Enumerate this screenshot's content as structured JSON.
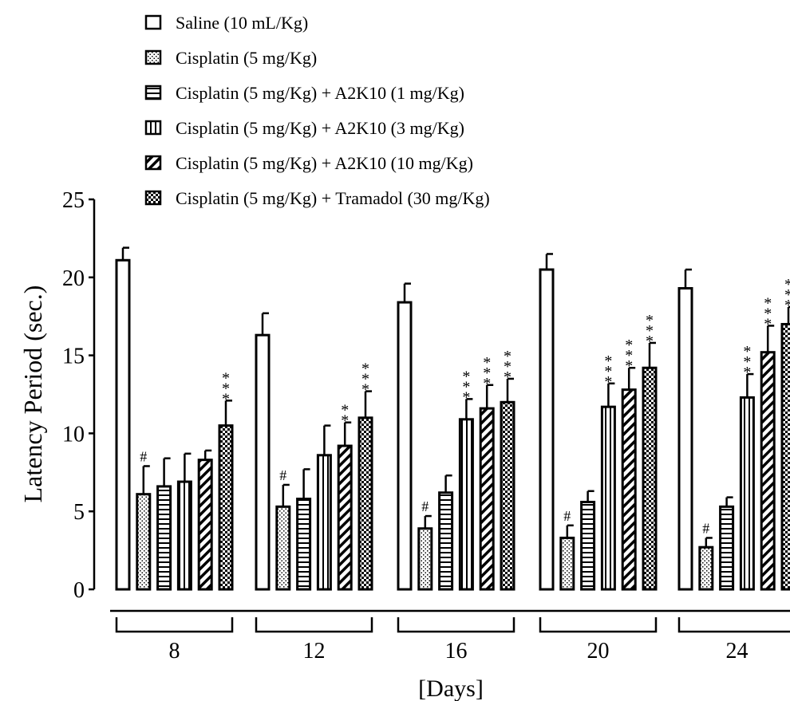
{
  "chart_data": {
    "type": "bar",
    "xlabel": "[Days]",
    "ylabel": "Latency Period (sec.)",
    "ylim": [
      0,
      25
    ],
    "yticks": [
      0,
      5,
      10,
      15,
      20,
      25
    ],
    "categories": [
      "8",
      "12",
      "16",
      "20",
      "24"
    ],
    "series": [
      {
        "name": "Saline (10 mL/Kg)",
        "pattern": "plain",
        "values": [
          21.1,
          16.3,
          18.4,
          20.5,
          19.3
        ],
        "errors": [
          0.8,
          1.4,
          1.2,
          1.0,
          1.2
        ],
        "annotations": [
          "",
          "",
          "",
          "",
          ""
        ]
      },
      {
        "name": "Cisplatin (5 mg/Kg)",
        "pattern": "dots",
        "values": [
          6.1,
          5.3,
          3.9,
          3.3,
          2.7
        ],
        "errors": [
          1.8,
          1.4,
          0.8,
          0.8,
          0.6
        ],
        "annotations": [
          "#",
          "#",
          "#",
          "#",
          "#"
        ]
      },
      {
        "name": "Cisplatin (5 mg/Kg) + A2K10 (1 mg/Kg)",
        "pattern": "hlines",
        "values": [
          6.6,
          5.8,
          6.2,
          5.6,
          5.3
        ],
        "errors": [
          1.8,
          1.9,
          1.1,
          0.7,
          0.6
        ],
        "annotations": [
          "",
          "",
          "",
          "",
          ""
        ]
      },
      {
        "name": "Cisplatin (5 mg/Kg) + A2K10 (3 mg/Kg)",
        "pattern": "vlines",
        "values": [
          6.9,
          8.6,
          10.9,
          11.7,
          12.3
        ],
        "errors": [
          1.8,
          1.9,
          1.3,
          1.5,
          1.5
        ],
        "annotations": [
          "",
          "",
          "***",
          "***",
          "***"
        ]
      },
      {
        "name": "Cisplatin (5 mg/Kg) + A2K10 (10 mg/Kg)",
        "pattern": "diag",
        "values": [
          8.3,
          9.2,
          11.6,
          12.8,
          15.2
        ],
        "errors": [
          0.6,
          1.5,
          1.5,
          1.4,
          1.7
        ],
        "annotations": [
          "",
          "**",
          "***",
          "***",
          "***"
        ]
      },
      {
        "name": "Cisplatin (5 mg/Kg) + Tramadol (30 mg/Kg)",
        "pattern": "checker",
        "values": [
          10.5,
          11.0,
          12.0,
          14.2,
          17.0
        ],
        "errors": [
          1.6,
          1.7,
          1.5,
          1.6,
          1.1
        ],
        "annotations": [
          "***",
          "***",
          "***",
          "***",
          "***"
        ]
      }
    ]
  }
}
